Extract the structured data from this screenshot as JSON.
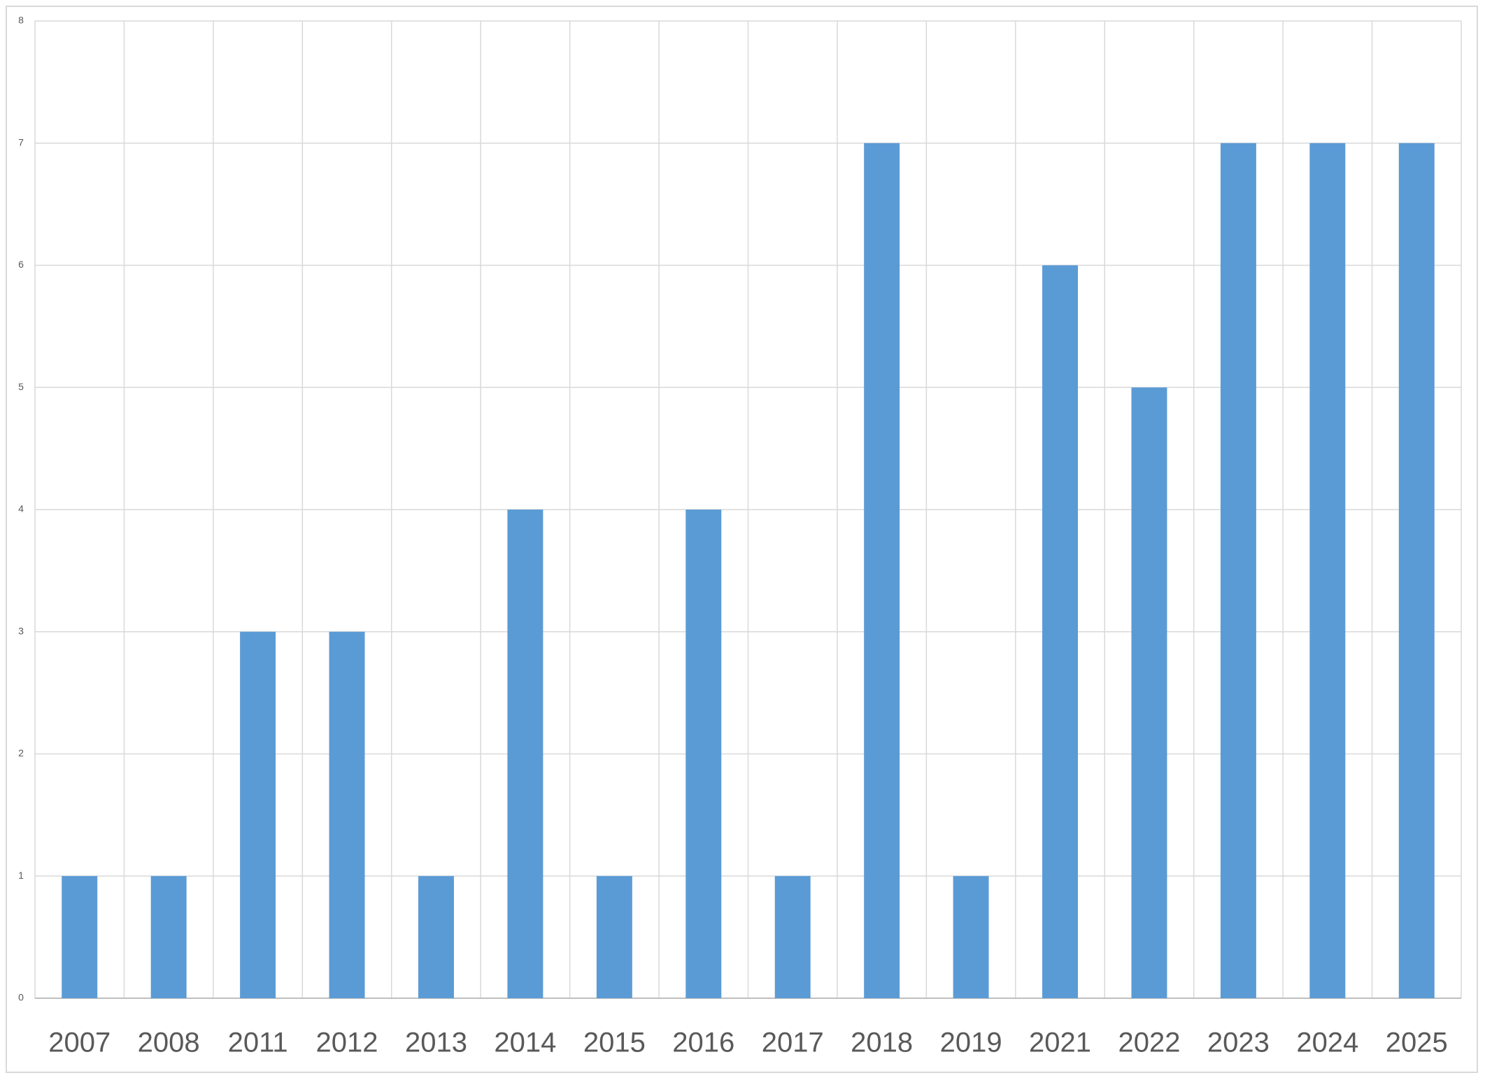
{
  "chart_data": {
    "type": "bar",
    "categories": [
      "2007",
      "2008",
      "2011",
      "2012",
      "2013",
      "2014",
      "2015",
      "2016",
      "2017",
      "2018",
      "2019",
      "2021",
      "2022",
      "2023",
      "2024",
      "2025"
    ],
    "values": [
      1,
      1,
      3,
      3,
      1,
      4,
      1,
      4,
      1,
      7,
      1,
      6,
      5,
      7,
      7,
      7
    ],
    "color": "#5b9bd5",
    "ylim": [
      0,
      8
    ],
    "yticks": [
      0,
      1,
      2,
      3,
      4,
      5,
      6,
      7,
      8
    ],
    "grid": true
  }
}
